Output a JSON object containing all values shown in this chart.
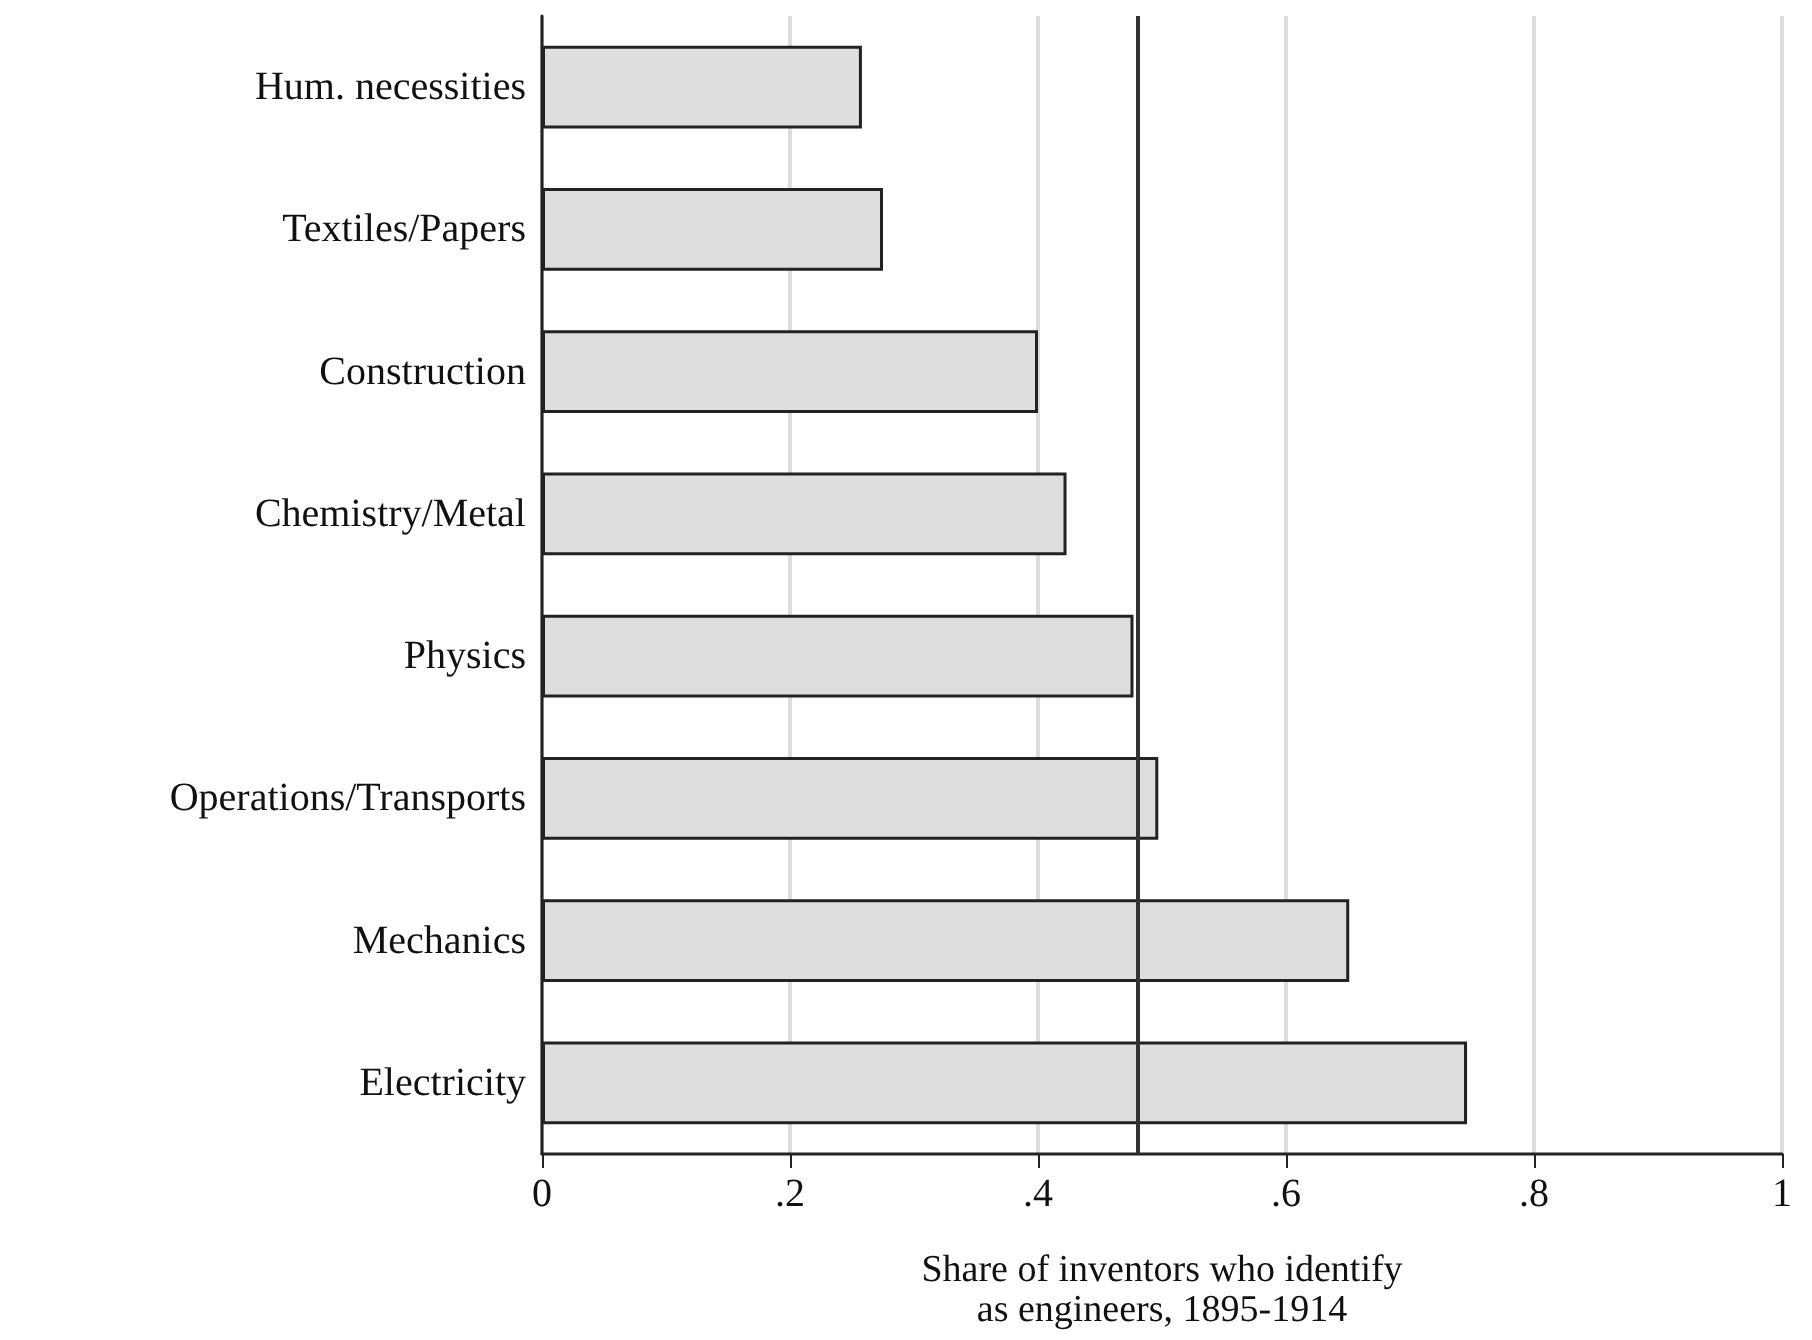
{
  "chart_data": {
    "type": "bar",
    "orientation": "horizontal",
    "xlabel": "Share of inventors who identify\nas engineers, 1895-1914",
    "categories": [
      "Hum. necessities",
      "Textiles/Papers",
      "Construction",
      "Chemistry/Metal",
      "Physics",
      "Operations/Transports",
      "Mechanics",
      "Electricity"
    ],
    "values": [
      0.258,
      0.275,
      0.4,
      0.423,
      0.477,
      0.497,
      0.651,
      0.746
    ],
    "color": "#dedede",
    "xlim": [
      0,
      1
    ],
    "xticks": [
      {
        "value": 0,
        "label": "0"
      },
      {
        "value": 0.2,
        "label": ".2"
      },
      {
        "value": 0.4,
        "label": ".4"
      },
      {
        "value": 0.6,
        "label": ".6"
      },
      {
        "value": 0.8,
        "label": ".8"
      },
      {
        "value": 1,
        "label": "1"
      }
    ],
    "ref_lines": [
      {
        "axis": "x",
        "value": 0.482,
        "color": "#333333"
      }
    ],
    "grid": "x"
  }
}
